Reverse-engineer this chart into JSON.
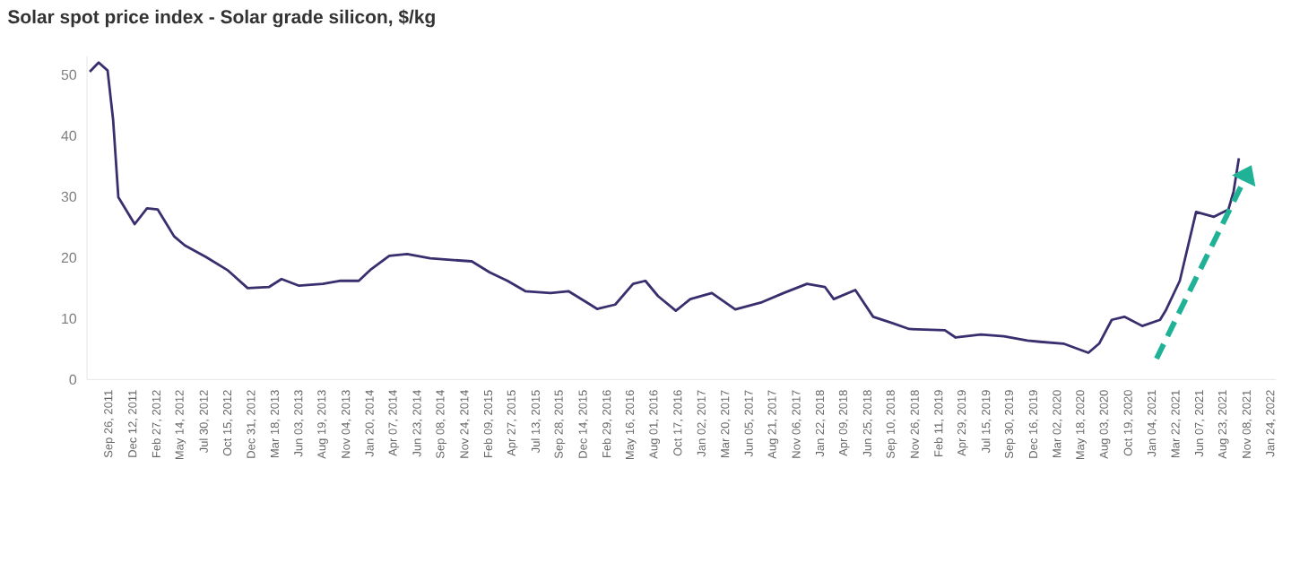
{
  "chart_data": {
    "type": "line",
    "title": "Solar spot price index - Solar grade silicon, $/kg",
    "x": [
      "2011-07-24",
      "2011-08-22",
      "2011-09-20",
      "2011-10-08",
      "2011-10-25",
      "2011-12-17",
      "2012-01-26",
      "2012-03-01",
      "2012-04-23",
      "2012-05-28",
      "2012-08-05",
      "2012-10-15",
      "2012-12-18",
      "2013-02-26",
      "2013-04-07",
      "2013-06-03",
      "2013-08-19",
      "2013-10-16",
      "2013-12-14",
      "2014-01-23",
      "2014-03-23",
      "2014-05-20",
      "2014-08-03",
      "2014-10-18",
      "2014-12-16",
      "2015-02-12",
      "2015-04-11",
      "2015-06-08",
      "2015-08-29",
      "2015-10-26",
      "2015-12-23",
      "2016-01-27",
      "2016-03-26",
      "2016-05-23",
      "2016-07-02",
      "2016-08-12",
      "2016-10-09",
      "2016-11-25",
      "2017-02-03",
      "2017-04-20",
      "2017-07-16",
      "2017-09-24",
      "2017-12-09",
      "2018-02-05",
      "2018-03-06",
      "2018-05-15",
      "2018-07-12",
      "2018-09-10",
      "2018-11-06",
      "2019-03-02",
      "2019-04-06",
      "2019-06-27",
      "2019-09-10",
      "2019-11-25",
      "2020-01-05",
      "2020-03-21",
      "2020-06-10",
      "2020-07-15",
      "2020-08-25",
      "2020-10-05",
      "2020-12-02",
      "2021-01-29",
      "2021-02-16",
      "2021-04-03",
      "2021-05-26",
      "2021-07-23",
      "2021-09-08",
      "2021-09-25",
      "2021-10-12"
    ],
    "series": [
      {
        "color": "#3b2e6e",
        "values": [
          50.5,
          52,
          50.7,
          42.6,
          29.9,
          25.5,
          28.1,
          27.9,
          23.5,
          22,
          20.1,
          17.9,
          15,
          15.2,
          16.5,
          15.4,
          15.7,
          16.2,
          16.2,
          18.1,
          20.3,
          20.6,
          19.9,
          19.6,
          19.4,
          17.6,
          16.2,
          14.5,
          14.2,
          14.5,
          12.7,
          11.6,
          12.3,
          15.7,
          16.2,
          13.7,
          11.3,
          13.2,
          14.2,
          11.5,
          12.7,
          14.2,
          15.7,
          15.2,
          13.2,
          14.7,
          10.3,
          9.3,
          8.3,
          8.1,
          6.9,
          7.4,
          7.1,
          6.4,
          6.2,
          5.9,
          4.4,
          5.9,
          9.8,
          10.3,
          8.8,
          9.8,
          11.3,
          16.2,
          27.5,
          26.7,
          27.9,
          30.9,
          36.3
        ]
      }
    ],
    "xlim": [
      "2011-07-15",
      "2022-02-10"
    ],
    "ylim": [
      0,
      53
    ],
    "yticks": [
      0,
      10,
      20,
      30,
      40,
      50
    ],
    "xticks": [
      {
        "value": "2011-09-26",
        "label": "Sep 26, 2011"
      },
      {
        "value": "2011-12-12",
        "label": "Dec 12, 2011"
      },
      {
        "value": "2012-02-27",
        "label": "Feb 27, 2012"
      },
      {
        "value": "2012-05-14",
        "label": "May 14, 2012"
      },
      {
        "value": "2012-07-30",
        "label": "Jul 30, 2012"
      },
      {
        "value": "2012-10-15",
        "label": "Oct 15, 2012"
      },
      {
        "value": "2012-12-31",
        "label": "Dec 31, 2012"
      },
      {
        "value": "2013-03-18",
        "label": "Mar 18, 2013"
      },
      {
        "value": "2013-06-03",
        "label": "Jun 03, 2013"
      },
      {
        "value": "2013-08-19",
        "label": "Aug 19, 2013"
      },
      {
        "value": "2013-11-04",
        "label": "Nov 04, 2013"
      },
      {
        "value": "2014-01-20",
        "label": "Jan 20, 2014"
      },
      {
        "value": "2014-04-07",
        "label": "Apr 07, 2014"
      },
      {
        "value": "2014-06-23",
        "label": "Jun 23, 2014"
      },
      {
        "value": "2014-09-08",
        "label": "Sep 08, 2014"
      },
      {
        "value": "2014-11-24",
        "label": "Nov 24, 2014"
      },
      {
        "value": "2015-02-09",
        "label": "Feb 09, 2015"
      },
      {
        "value": "2015-04-27",
        "label": "Apr 27, 2015"
      },
      {
        "value": "2015-07-13",
        "label": "Jul 13, 2015"
      },
      {
        "value": "2015-09-28",
        "label": "Sep 28, 2015"
      },
      {
        "value": "2015-12-14",
        "label": "Dec 14, 2015"
      },
      {
        "value": "2016-02-29",
        "label": "Feb 29, 2016"
      },
      {
        "value": "2016-05-16",
        "label": "May 16, 2016"
      },
      {
        "value": "2016-08-01",
        "label": "Aug 01, 2016"
      },
      {
        "value": "2016-10-17",
        "label": "Oct 17, 2016"
      },
      {
        "value": "2017-01-02",
        "label": "Jan 02, 2017"
      },
      {
        "value": "2017-03-20",
        "label": "Mar 20, 2017"
      },
      {
        "value": "2017-06-05",
        "label": "Jun 05, 2017"
      },
      {
        "value": "2017-08-21",
        "label": "Aug 21, 2017"
      },
      {
        "value": "2017-11-06",
        "label": "Nov 06, 2017"
      },
      {
        "value": "2018-01-22",
        "label": "Jan 22, 2018"
      },
      {
        "value": "2018-04-09",
        "label": "Apr 09, 2018"
      },
      {
        "value": "2018-06-25",
        "label": "Jun 25, 2018"
      },
      {
        "value": "2018-09-10",
        "label": "Sep 10, 2018"
      },
      {
        "value": "2018-11-26",
        "label": "Nov 26, 2018"
      },
      {
        "value": "2019-02-11",
        "label": "Feb 11, 2019"
      },
      {
        "value": "2019-04-29",
        "label": "Apr 29, 2019"
      },
      {
        "value": "2019-07-15",
        "label": "Jul 15, 2019"
      },
      {
        "value": "2019-09-30",
        "label": "Sep 30, 2019"
      },
      {
        "value": "2019-12-16",
        "label": "Dec 16, 2019"
      },
      {
        "value": "2020-03-02",
        "label": "Mar 02, 2020"
      },
      {
        "value": "2020-05-18",
        "label": "May 18, 2020"
      },
      {
        "value": "2020-08-03",
        "label": "Aug 03, 2020"
      },
      {
        "value": "2020-10-19",
        "label": "Oct 19, 2020"
      },
      {
        "value": "2021-01-04",
        "label": "Jan 04, 2021"
      },
      {
        "value": "2021-03-22",
        "label": "Mar 22, 2021"
      },
      {
        "value": "2021-06-07",
        "label": "Jun 07, 2021"
      },
      {
        "value": "2021-08-23",
        "label": "Aug 23, 2021"
      },
      {
        "value": "2021-11-08",
        "label": "Nov 08, 2021"
      },
      {
        "value": "2022-01-24",
        "label": "Jan 24, 2022"
      }
    ]
  }
}
